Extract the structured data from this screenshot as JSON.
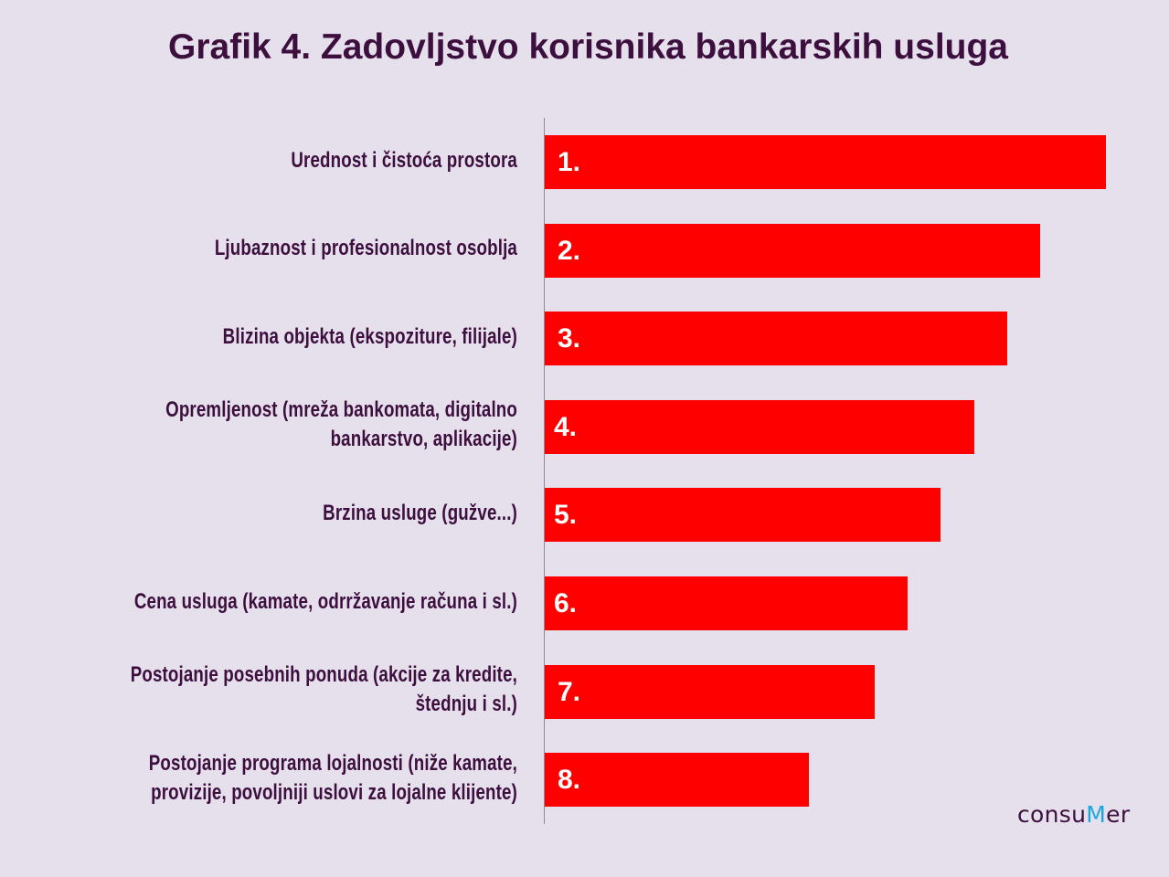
{
  "title": "Grafik 4. Zadovljstvo korisnika bankarskih usluga",
  "logo": {
    "prefix": "consu",
    "accent": "M",
    "suffix": "er",
    "accent_color": "#1aa7e0"
  },
  "colors": {
    "bar": "#ff0000",
    "text": "#3d0f3f",
    "background": "#e6e0ec"
  },
  "chart_data": {
    "type": "bar",
    "orientation": "horizontal",
    "grid": false,
    "categories": [
      [
        "Urednost i čistoća prostora"
      ],
      [
        "Ljubaznost i profesionalnost osoblja"
      ],
      [
        "Blizina objekta (ekspoziture, filijale)"
      ],
      [
        "Opremljenost (mreža bankomata, digitalno",
        "bankarstvo, aplikacije)"
      ],
      [
        "Brzina usluge (gužve...)"
      ],
      [
        "Cena usluga (kamate, odrržavanje računa i sl.)"
      ],
      [
        "Postojanje posebnih ponuda (akcije za kredite,",
        "štednju i sl.)"
      ],
      [
        "Postojanje programa lojalnosti (niže kamate,",
        "provizije, povoljniji uslovi za lojalne klijente)"
      ]
    ],
    "values": [
      8.5,
      7.5,
      7.0,
      6.5,
      6.0,
      5.5,
      5.0,
      4.0
    ],
    "data_labels": [
      "1.",
      "2.",
      "3.",
      "4.",
      "5.",
      "6.",
      "7.",
      "8."
    ],
    "xlim": [
      0,
      8.5
    ]
  }
}
